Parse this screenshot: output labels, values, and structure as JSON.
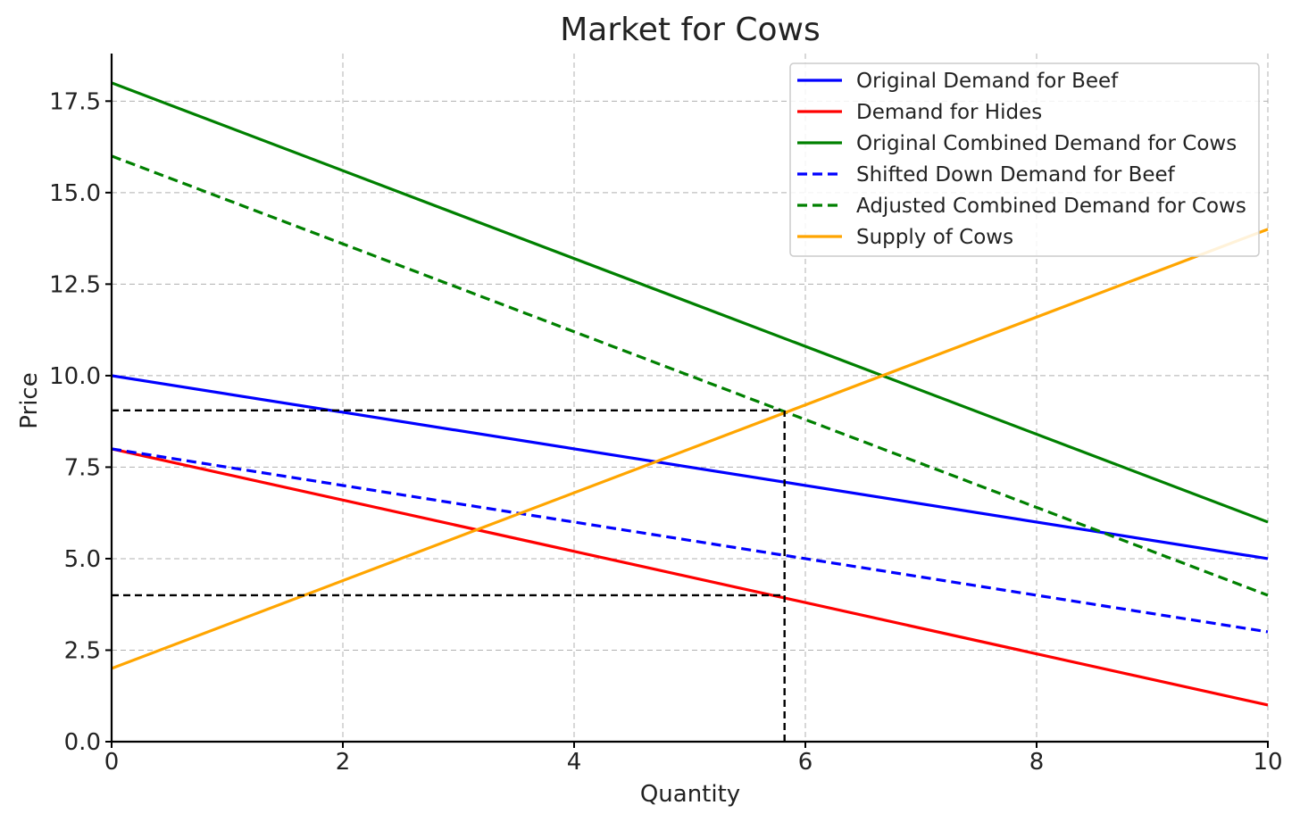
{
  "chart_data": {
    "type": "line",
    "title": "Market for Cows",
    "xlabel": "Quantity",
    "ylabel": "Price",
    "xlim": [
      0,
      10
    ],
    "ylim": [
      0,
      18.8
    ],
    "xticks": [
      0,
      2,
      4,
      6,
      8,
      10
    ],
    "xtick_labels": [
      "0",
      "2",
      "4",
      "6",
      "8",
      "10"
    ],
    "yticks": [
      0,
      2.5,
      5,
      7.5,
      10,
      12.5,
      15,
      17.5
    ],
    "ytick_labels": [
      "0.0",
      "2.5",
      "5.0",
      "7.5",
      "10.0",
      "12.5",
      "15.0",
      "17.5"
    ],
    "grid": true,
    "legend_position": "top-right",
    "series": [
      {
        "name": "Original Demand for Beef",
        "color": "#0000ff",
        "dash": "solid",
        "x": [
          0,
          10
        ],
        "y": [
          10,
          5
        ]
      },
      {
        "name": "Demand for Hides",
        "color": "#ff0000",
        "dash": "solid",
        "x": [
          0,
          10
        ],
        "y": [
          8,
          1
        ]
      },
      {
        "name": "Original Combined Demand for Cows",
        "color": "#008000",
        "dash": "solid",
        "x": [
          0,
          10
        ],
        "y": [
          18,
          6
        ]
      },
      {
        "name": "Shifted Down Demand for Beef",
        "color": "#0000ff",
        "dash": "dashed",
        "x": [
          0,
          10
        ],
        "y": [
          8,
          3
        ]
      },
      {
        "name": "Adjusted Combined Demand for Cows",
        "color": "#008000",
        "dash": "dashed",
        "x": [
          0,
          10
        ],
        "y": [
          16,
          4
        ]
      },
      {
        "name": "Supply of Cows",
        "color": "#ffa500",
        "dash": "solid",
        "x": [
          0,
          10
        ],
        "y": [
          2,
          14
        ]
      }
    ],
    "annotations": [
      {
        "type": "reference-line",
        "color": "#000000",
        "dash": "dashed",
        "x": [
          0,
          5.82
        ],
        "y": [
          9.05,
          9.05
        ]
      },
      {
        "type": "reference-line",
        "color": "#000000",
        "dash": "dashed",
        "x": [
          0,
          5.82
        ],
        "y": [
          4.0,
          4.0
        ]
      },
      {
        "type": "reference-line",
        "color": "#000000",
        "dash": "dashed",
        "x": [
          5.82,
          5.82
        ],
        "y": [
          0,
          9.05
        ]
      }
    ]
  }
}
